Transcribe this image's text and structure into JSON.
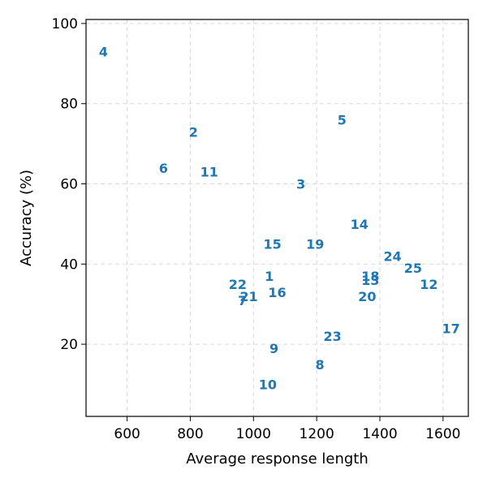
{
  "chart_data": {
    "type": "scatter",
    "xlabel": "Average response length",
    "ylabel": "Accuracy (%)",
    "xlim": [
      470,
      1680
    ],
    "ylim": [
      2,
      101
    ],
    "xticks": [
      600,
      800,
      1000,
      1200,
      1400,
      1600
    ],
    "yticks": [
      20,
      40,
      60,
      80,
      100
    ],
    "grid": true,
    "point_color": "#1f77b4",
    "points": [
      {
        "label": "1",
        "x": 1050,
        "y": 37
      },
      {
        "label": "2",
        "x": 810,
        "y": 73
      },
      {
        "label": "3",
        "x": 1150,
        "y": 60
      },
      {
        "label": "4",
        "x": 525,
        "y": 93
      },
      {
        "label": "5",
        "x": 1280,
        "y": 76
      },
      {
        "label": "6",
        "x": 715,
        "y": 64
      },
      {
        "label": "7",
        "x": 965,
        "y": 31
      },
      {
        "label": "8",
        "x": 1210,
        "y": 15
      },
      {
        "label": "9",
        "x": 1065,
        "y": 19
      },
      {
        "label": "10",
        "x": 1045,
        "y": 10
      },
      {
        "label": "11",
        "x": 860,
        "y": 63
      },
      {
        "label": "12",
        "x": 1555,
        "y": 35
      },
      {
        "label": "13",
        "x": 1370,
        "y": 36
      },
      {
        "label": "14",
        "x": 1335,
        "y": 50
      },
      {
        "label": "15",
        "x": 1060,
        "y": 45
      },
      {
        "label": "16",
        "x": 1075,
        "y": 33
      },
      {
        "label": "17",
        "x": 1625,
        "y": 24
      },
      {
        "label": "18",
        "x": 1370,
        "y": 37
      },
      {
        "label": "19",
        "x": 1195,
        "y": 45
      },
      {
        "label": "20",
        "x": 1360,
        "y": 32
      },
      {
        "label": "21",
        "x": 985,
        "y": 32
      },
      {
        "label": "22",
        "x": 950,
        "y": 35
      },
      {
        "label": "23",
        "x": 1250,
        "y": 22
      },
      {
        "label": "24",
        "x": 1440,
        "y": 42
      },
      {
        "label": "25",
        "x": 1505,
        "y": 39
      }
    ]
  }
}
